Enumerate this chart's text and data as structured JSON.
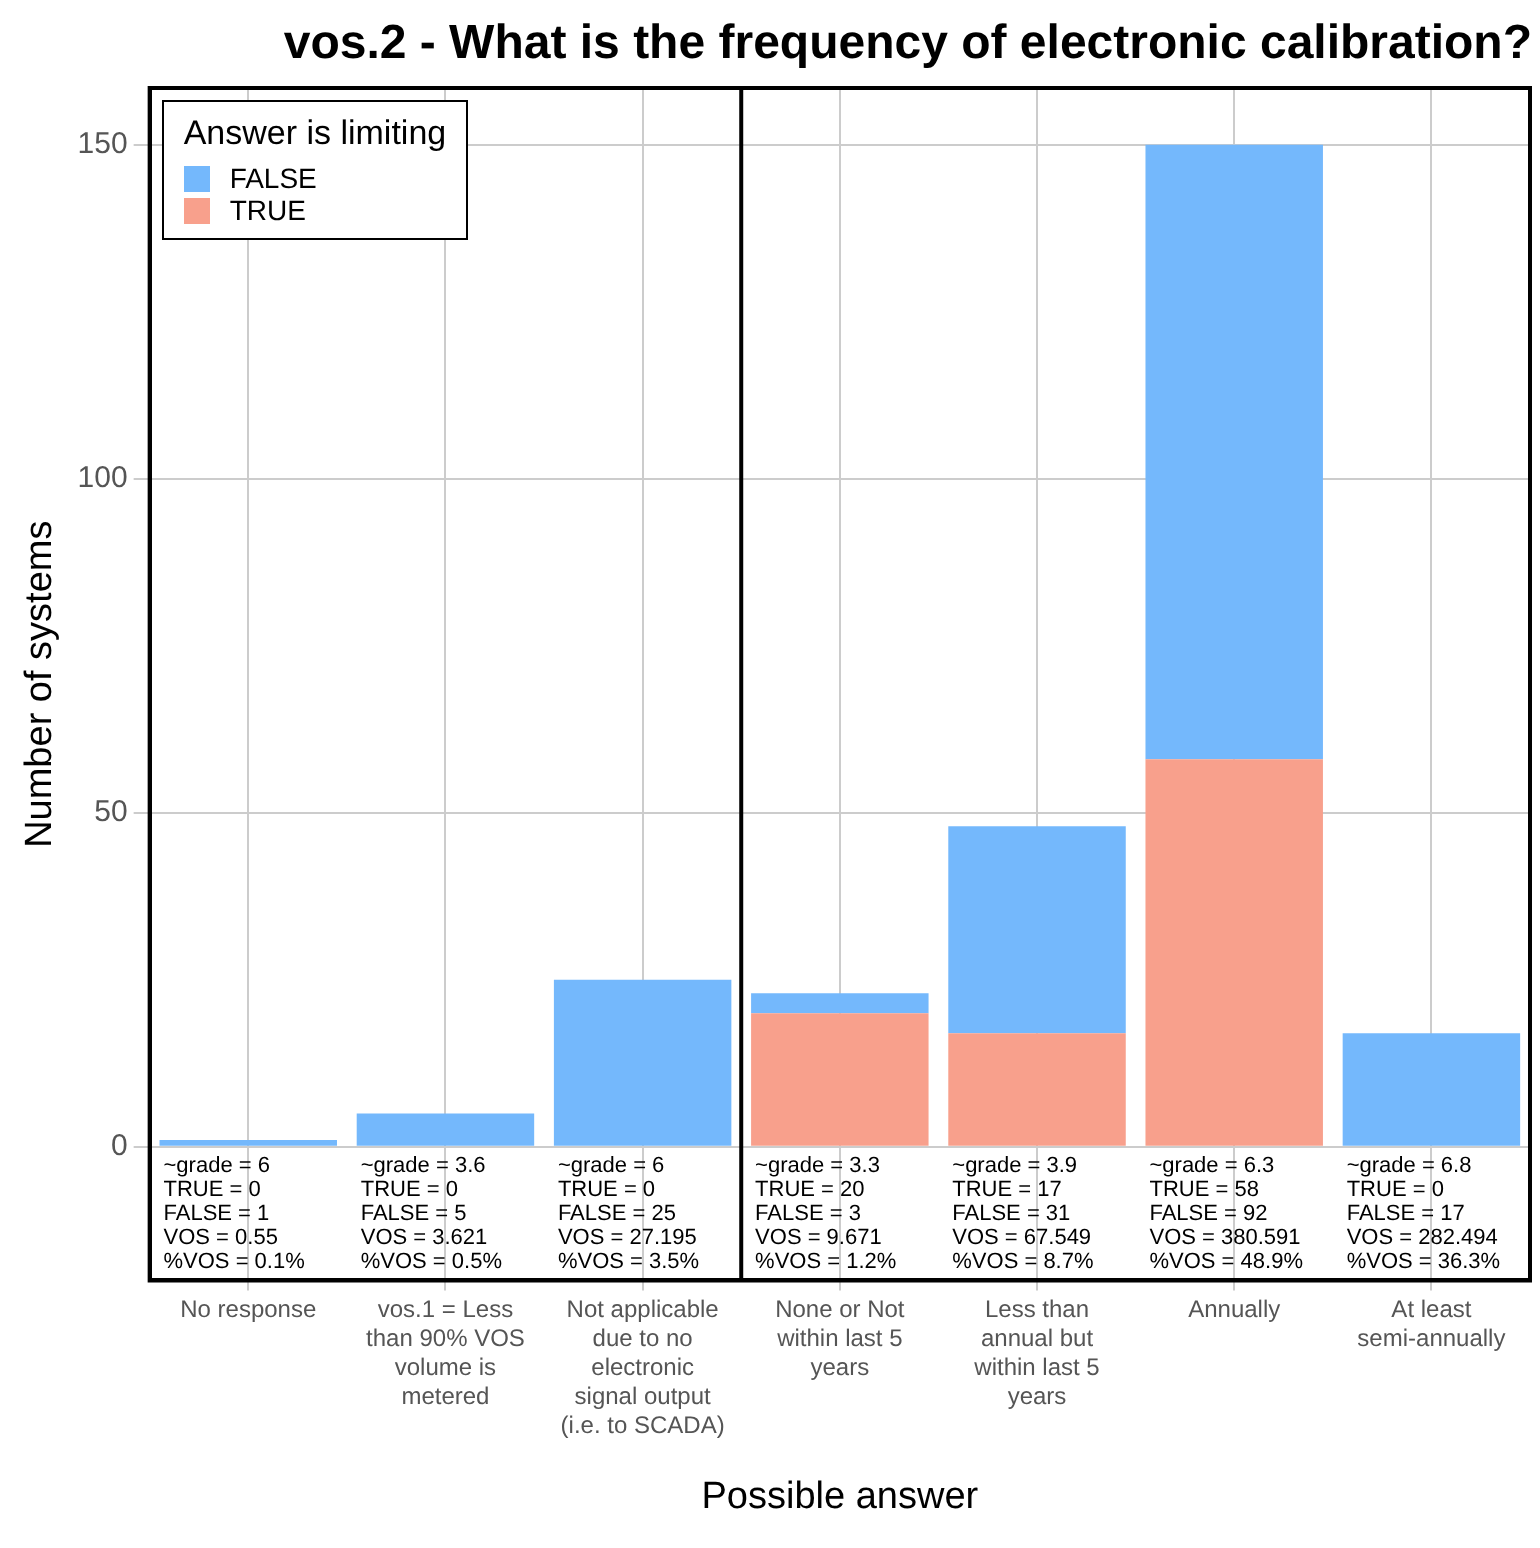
{
  "chart_data": {
    "type": "bar",
    "stacked": true,
    "title": "vos.2 - What is the frequency of electronic calibration?",
    "xlabel": "Possible answer",
    "ylabel": "Number of systems",
    "legend_title": "Answer is limiting",
    "legend": "top left",
    "grid": true,
    "categories": [
      "No response",
      "vos.1 = Less than 90% VOS volume is metered",
      "Not applicable due to no electronic signal output (i.e. to SCADA)",
      "None or Not within last 5 years",
      "Less than annual but within last 5 years",
      "Annually",
      "At least semi-annually"
    ],
    "series": [
      {
        "name": "TRUE",
        "color": "#f8a08c",
        "values": [
          0,
          0,
          0,
          20,
          17,
          58,
          0
        ]
      },
      {
        "name": "FALSE",
        "color": "#74b8fc",
        "values": [
          1,
          5,
          25,
          3,
          31,
          92,
          17
        ]
      }
    ],
    "ylim": [
      -20,
      158.5
    ],
    "yticks": [
      0,
      50,
      100,
      150
    ],
    "ref_lines": [
      {
        "axis": "x",
        "value": "None or Not within last 5 years",
        "color": "#000000"
      }
    ],
    "annotations": [
      "~grade = 6\nTRUE = 0\nFALSE = 1\nVOS = 0.55\n%VOS = 0.1%",
      "~grade = 3.6\nTRUE = 0\nFALSE = 5\nVOS = 3.621\n%VOS = 0.5%",
      "~grade = 6\nTRUE = 0\nFALSE = 25\nVOS = 27.195\n%VOS = 3.5%",
      "~grade = 3.3\nTRUE = 20\nFALSE = 3\nVOS = 9.671\n%VOS = 1.2%",
      "~grade = 3.9\nTRUE = 17\nFALSE = 31\nVOS = 67.549\n%VOS = 8.7%",
      "~grade = 6.3\nTRUE = 58\nFALSE = 92\nVOS = 380.591\n%VOS = 48.9%",
      "~grade = 6.8\nTRUE = 0\nFALSE = 17\nVOS = 282.494\n%VOS = 36.3%"
    ]
  }
}
